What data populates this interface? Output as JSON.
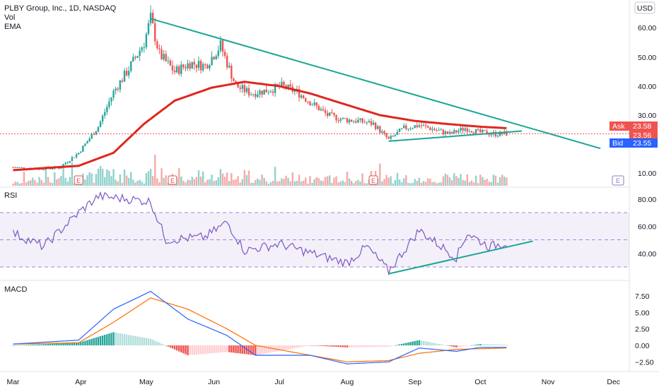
{
  "header": {
    "symbol_line": "PLBY Group, Inc., 1D, NASDAQ",
    "indicators": [
      "Vol",
      "EMA"
    ],
    "currency": "USD"
  },
  "price_pane": {
    "price_ticks": [
      {
        "value": 60,
        "label": "60.00"
      },
      {
        "value": 50,
        "label": "50.00"
      },
      {
        "value": 40,
        "label": "40.00"
      },
      {
        "value": 30,
        "label": "30.00"
      },
      {
        "value": 10,
        "label": "10.00"
      }
    ],
    "ask": {
      "label": "Ask",
      "price": "23.58"
    },
    "last": {
      "price": "23.56"
    },
    "bid": {
      "label": "Bid",
      "price": "23.55"
    },
    "earnings_marker": "E"
  },
  "rsi_pane": {
    "title": "RSI",
    "ticks": [
      {
        "value": 80,
        "label": "80.00"
      },
      {
        "value": 60,
        "label": "60.00"
      },
      {
        "value": 40,
        "label": "40.00"
      }
    ],
    "band": [
      30,
      70
    ]
  },
  "macd_pane": {
    "title": "MACD",
    "ticks": [
      {
        "value": 7.5,
        "label": "7.50"
      },
      {
        "value": 5,
        "label": "5.00"
      },
      {
        "value": 2.5,
        "label": "2.50"
      },
      {
        "value": 0,
        "label": "0.00"
      },
      {
        "value": -2.5,
        "label": "−2.50"
      }
    ]
  },
  "x_axis": {
    "labels": [
      "Mar",
      "Apr",
      "May",
      "Jun",
      "Jul",
      "Aug",
      "Sep",
      "Oct",
      "Nov",
      "Dec"
    ]
  },
  "colors": {
    "up": "#26a69a",
    "down": "#ef5350",
    "ema": "#e0261f",
    "trendline": "#1aa595",
    "rsi_line": "#7e57c2",
    "macd_line": "#2962ff",
    "signal_line": "#ff6d00",
    "earnings": "#e04f4f",
    "bid": "#2962ff",
    "ask": "#ef5350"
  },
  "chart_data": {
    "type": "candlestick",
    "months": [
      "Mar",
      "Apr",
      "May",
      "Jun",
      "Jul",
      "Aug",
      "Sep",
      "Oct"
    ],
    "close_series": [
      {
        "date": "2021-03-01",
        "close": 12.0
      },
      {
        "date": "2021-03-10",
        "close": 11.5
      },
      {
        "date": "2021-03-22",
        "close": 11.8
      },
      {
        "date": "2021-03-31",
        "close": 17.0
      },
      {
        "date": "2021-04-09",
        "close": 26.0
      },
      {
        "date": "2021-04-16",
        "close": 38.0
      },
      {
        "date": "2021-04-23",
        "close": 46.0
      },
      {
        "date": "2021-04-30",
        "close": 55.0
      },
      {
        "date": "2021-05-03",
        "close": 63.0
      },
      {
        "date": "2021-05-07",
        "close": 51.0
      },
      {
        "date": "2021-05-14",
        "close": 45.0
      },
      {
        "date": "2021-05-21",
        "close": 48.0
      },
      {
        "date": "2021-05-28",
        "close": 47.0
      },
      {
        "date": "2021-06-04",
        "close": 54.0
      },
      {
        "date": "2021-06-11",
        "close": 40.0
      },
      {
        "date": "2021-06-18",
        "close": 37.5
      },
      {
        "date": "2021-06-25",
        "close": 38.5
      },
      {
        "date": "2021-07-02",
        "close": 40.0
      },
      {
        "date": "2021-07-09",
        "close": 38.0
      },
      {
        "date": "2021-07-16",
        "close": 34.0
      },
      {
        "date": "2021-07-23",
        "close": 30.0
      },
      {
        "date": "2021-07-30",
        "close": 28.5
      },
      {
        "date": "2021-08-06",
        "close": 28.0
      },
      {
        "date": "2021-08-13",
        "close": 27.0
      },
      {
        "date": "2021-08-20",
        "close": 21.5
      },
      {
        "date": "2021-08-27",
        "close": 25.5
      },
      {
        "date": "2021-09-03",
        "close": 26.5
      },
      {
        "date": "2021-09-10",
        "close": 25.0
      },
      {
        "date": "2021-09-17",
        "close": 23.5
      },
      {
        "date": "2021-09-24",
        "close": 25.5
      },
      {
        "date": "2021-10-01",
        "close": 24.0
      },
      {
        "date": "2021-10-08",
        "close": 23.5
      },
      {
        "date": "2021-10-13",
        "close": 23.56
      }
    ],
    "ema_series": [
      {
        "date": "2021-03-01",
        "value": 11.0
      },
      {
        "date": "2021-03-31",
        "value": 12.5
      },
      {
        "date": "2021-04-16",
        "value": 17.0
      },
      {
        "date": "2021-04-30",
        "value": 27.0
      },
      {
        "date": "2021-05-14",
        "value": 35.0
      },
      {
        "date": "2021-05-31",
        "value": 39.5
      },
      {
        "date": "2021-06-15",
        "value": 41.5
      },
      {
        "date": "2021-07-01",
        "value": 40.0
      },
      {
        "date": "2021-07-15",
        "value": 37.5
      },
      {
        "date": "2021-08-01",
        "value": 33.5
      },
      {
        "date": "2021-08-16",
        "value": 30.0
      },
      {
        "date": "2021-09-01",
        "value": 28.0
      },
      {
        "date": "2021-09-15",
        "value": 27.0
      },
      {
        "date": "2021-10-01",
        "value": 26.0
      },
      {
        "date": "2021-10-13",
        "value": 25.5
      }
    ],
    "trendlines": [
      {
        "name": "",
        "from": {
          "date": "2021-05-03",
          "value": 63.0
        },
        "to": {
          "date": "2021-11-25",
          "value": 18.5
        }
      },
      {
        "name": "",
        "from": {
          "date": "2021-08-20",
          "value": 21.0
        },
        "to": {
          "date": "2021-10-20",
          "value": 24.5
        }
      }
    ],
    "earnings_dates": [
      "2021-03-31",
      "2021-05-13",
      "2021-08-13"
    ],
    "rsi_series": [
      {
        "date": "2021-03-01",
        "value": 55
      },
      {
        "date": "2021-03-15",
        "value": 45
      },
      {
        "date": "2021-03-31",
        "value": 70
      },
      {
        "date": "2021-04-09",
        "value": 82
      },
      {
        "date": "2021-04-23",
        "value": 80
      },
      {
        "date": "2021-05-03",
        "value": 78
      },
      {
        "date": "2021-05-10",
        "value": 50
      },
      {
        "date": "2021-05-28",
        "value": 52
      },
      {
        "date": "2021-06-07",
        "value": 63
      },
      {
        "date": "2021-06-15",
        "value": 42
      },
      {
        "date": "2021-07-01",
        "value": 47
      },
      {
        "date": "2021-07-20",
        "value": 38
      },
      {
        "date": "2021-08-01",
        "value": 33
      },
      {
        "date": "2021-08-10",
        "value": 45
      },
      {
        "date": "2021-08-20",
        "value": 27
      },
      {
        "date": "2021-09-03",
        "value": 57
      },
      {
        "date": "2021-09-20",
        "value": 37
      },
      {
        "date": "2021-09-25",
        "value": 55
      },
      {
        "date": "2021-10-05",
        "value": 45
      },
      {
        "date": "2021-10-13",
        "value": 48
      }
    ],
    "macd_series": [
      {
        "date": "2021-03-01",
        "macd": 0.2,
        "signal": 0.2
      },
      {
        "date": "2021-03-31",
        "macd": 0.8,
        "signal": 0.4
      },
      {
        "date": "2021-04-16",
        "macd": 5.5,
        "signal": 3.5
      },
      {
        "date": "2021-05-03",
        "macd": 8.2,
        "signal": 7.2
      },
      {
        "date": "2021-05-20",
        "macd": 4.0,
        "signal": 5.5
      },
      {
        "date": "2021-06-07",
        "macd": 1.5,
        "signal": 2.5
      },
      {
        "date": "2021-06-20",
        "macd": -1.5,
        "signal": 0.0
      },
      {
        "date": "2021-07-15",
        "macd": -1.5,
        "signal": -1.5
      },
      {
        "date": "2021-08-01",
        "macd": -2.8,
        "signal": -2.5
      },
      {
        "date": "2021-08-20",
        "macd": -2.5,
        "signal": -2.3
      },
      {
        "date": "2021-09-03",
        "macd": -0.4,
        "signal": -1.2
      },
      {
        "date": "2021-09-20",
        "macd": -0.9,
        "signal": -0.6
      },
      {
        "date": "2021-10-01",
        "macd": -0.3,
        "signal": -0.5
      },
      {
        "date": "2021-10-13",
        "macd": -0.3,
        "signal": -0.4
      }
    ],
    "rsi_trendline": {
      "name": "",
      "from": {
        "date": "2021-08-20",
        "value": 25
      },
      "to": {
        "date": "2021-10-25",
        "value": 49
      }
    }
  }
}
